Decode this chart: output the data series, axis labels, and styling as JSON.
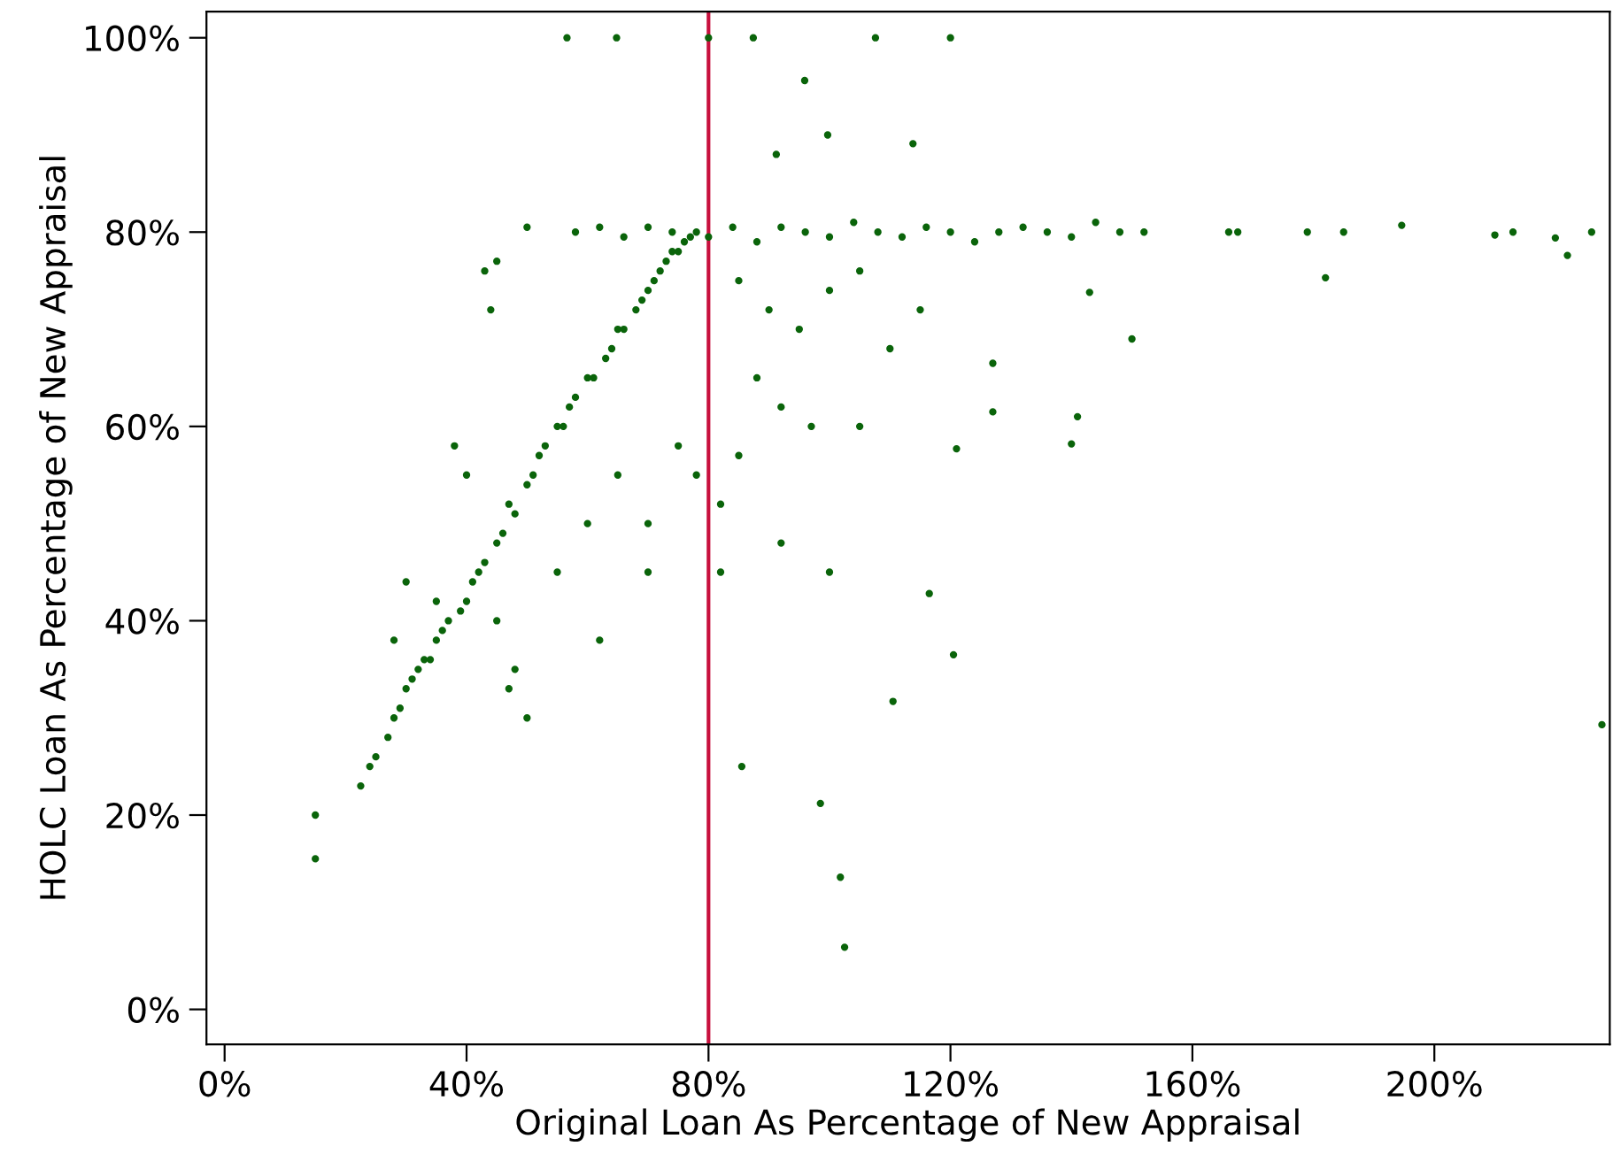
{
  "chart_data": {
    "type": "scatter",
    "xlabel": "Original Loan As Percentage of New Appraisal",
    "ylabel": "HOLC Loan As Percentage of New Appraisal",
    "xlim": [
      -3,
      229
    ],
    "ylim": [
      -3.6,
      102.7
    ],
    "xticks": [
      {
        "value": 0,
        "label": "0%"
      },
      {
        "value": 40,
        "label": "40%"
      },
      {
        "value": 80,
        "label": "80%"
      },
      {
        "value": 120,
        "label": "120%"
      },
      {
        "value": 160,
        "label": "160%"
      },
      {
        "value": 200,
        "label": "200%"
      }
    ],
    "yticks": [
      {
        "value": 0,
        "label": "0%"
      },
      {
        "value": 20,
        "label": "20%"
      },
      {
        "value": 40,
        "label": "40%"
      },
      {
        "value": 60,
        "label": "60%"
      },
      {
        "value": 80,
        "label": "80%"
      },
      {
        "value": 100,
        "label": "100%"
      }
    ],
    "grid": false,
    "marker": "circle",
    "ref_lines": [
      {
        "axis": "x",
        "value": 80,
        "label": null,
        "color": "#c8103e"
      }
    ],
    "series": [
      {
        "color": "#0a640a",
        "x": [
          56.6,
          64.8,
          80,
          87.4,
          107.6,
          120,
          95.9,
          99.7,
          91.2,
          113.8,
          166,
          167.5,
          179,
          185,
          194.6,
          210,
          213,
          222,
          220,
          226,
          182,
          150,
          143,
          141,
          140,
          121,
          127,
          127,
          116.5,
          110.5,
          120.5,
          227.7,
          85.5,
          98.5,
          101.8,
          102.5,
          15,
          15,
          22.5,
          82,
          25,
          27,
          28,
          30,
          33,
          35,
          37,
          40,
          42,
          45,
          47,
          50,
          52,
          55,
          57,
          60,
          63,
          65,
          68,
          70,
          72,
          74,
          76,
          78,
          24,
          29,
          31,
          34,
          36,
          39,
          41,
          43,
          46,
          48,
          51,
          53,
          56,
          58,
          61,
          64,
          66,
          69,
          71,
          73,
          75,
          77,
          58,
          62,
          66,
          70,
          74,
          80,
          84,
          88,
          92,
          96,
          100,
          104,
          108,
          112,
          116,
          120,
          124,
          128,
          132,
          136,
          140,
          144,
          148,
          152,
          85,
          90,
          95,
          100,
          105,
          88,
          92,
          97,
          85,
          82,
          78,
          75,
          70,
          65,
          60,
          55,
          50,
          48,
          45,
          40,
          38,
          43,
          45,
          50,
          44,
          35,
          30,
          28,
          32,
          47,
          62,
          70,
          105,
          110,
          115,
          100,
          92
        ],
        "values": [
          100,
          100,
          100,
          100,
          100,
          100,
          95.6,
          90,
          88,
          89.1,
          80,
          80,
          80,
          80,
          80.7,
          79.7,
          80,
          77.6,
          79.4,
          80,
          75.3,
          69,
          73.8,
          61,
          58.2,
          57.7,
          66.5,
          61.5,
          42.8,
          31.7,
          36.5,
          29.3,
          25,
          21.2,
          13.6,
          6.4,
          20,
          15.5,
          23,
          45,
          26,
          28,
          30,
          33,
          36,
          38,
          40,
          42,
          45,
          48,
          52,
          54,
          57,
          60,
          62,
          65,
          67,
          70,
          72,
          74,
          76,
          78,
          79,
          80,
          25,
          31,
          34,
          36,
          39,
          41,
          44,
          46,
          49,
          51,
          55,
          58,
          60,
          63,
          65,
          68,
          70,
          73,
          75,
          77,
          78,
          79.5,
          80,
          80.5,
          79.5,
          80.5,
          80,
          79.5,
          80.5,
          79,
          80.5,
          80,
          79.5,
          81,
          80,
          79.5,
          80.5,
          80,
          79,
          80,
          80.5,
          80,
          79.5,
          81,
          80,
          80,
          75,
          72,
          70,
          74,
          76,
          65,
          62,
          60,
          57,
          52,
          55,
          58,
          50,
          55,
          50,
          45,
          30,
          35,
          40,
          55,
          58,
          76,
          77,
          80.5,
          72,
          42,
          44,
          38,
          35,
          33,
          38,
          45,
          60,
          68,
          72,
          45,
          48
        ]
      }
    ]
  }
}
